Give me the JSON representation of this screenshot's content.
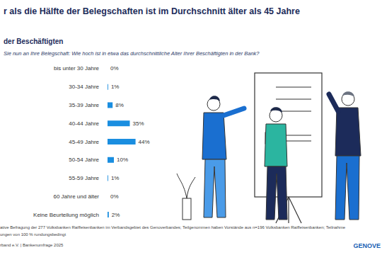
{
  "chart_data": {
    "type": "bar",
    "orientation": "horizontal",
    "title": "r als die Hälfte der Belegschaften ist im Durchschnitt älter als 45 Jahre",
    "subtitle": "der Beschäftigten",
    "annotations": [
      "Sie nun an Ihre Belegschaft: Wie hoch ist in etwa das durchschnittliche Alter Ihrer Beschäftigten in der Bank?",
      "ative Befragung der 277 Volksbanken Raiffeisenbanken im Verbandsgebiet des Genoverbandes; Teilgenommen haben Vorstände aus n=196 Volksbanken Raiffeisenbanken; Teilnahme",
      "ungen von 100 % rundungsbedingt",
      "rband e.V. | Bankenumfrage 2025",
      "GENOVE"
    ],
    "categories": [
      "bis unter 30 Jahre",
      "30-34 Jahre",
      "35-39 Jahre",
      "40-44 Jahre",
      "45-49 Jahre",
      "50-54 Jahre",
      "55-59 Jahre",
      "60 Jahre und älter",
      "Keine Beurteilung möglich"
    ],
    "values": [
      0,
      1,
      8,
      35,
      44,
      10,
      1,
      0,
      2
    ],
    "value_labels": [
      "0%",
      "1%",
      "8%",
      "35%",
      "44%",
      "10%",
      "1%",
      "0%",
      "2%"
    ],
    "color": "#1a8ee0",
    "xlim": [
      0,
      100
    ],
    "data_labels": true,
    "tick_labels": "y",
    "grid": false
  }
}
